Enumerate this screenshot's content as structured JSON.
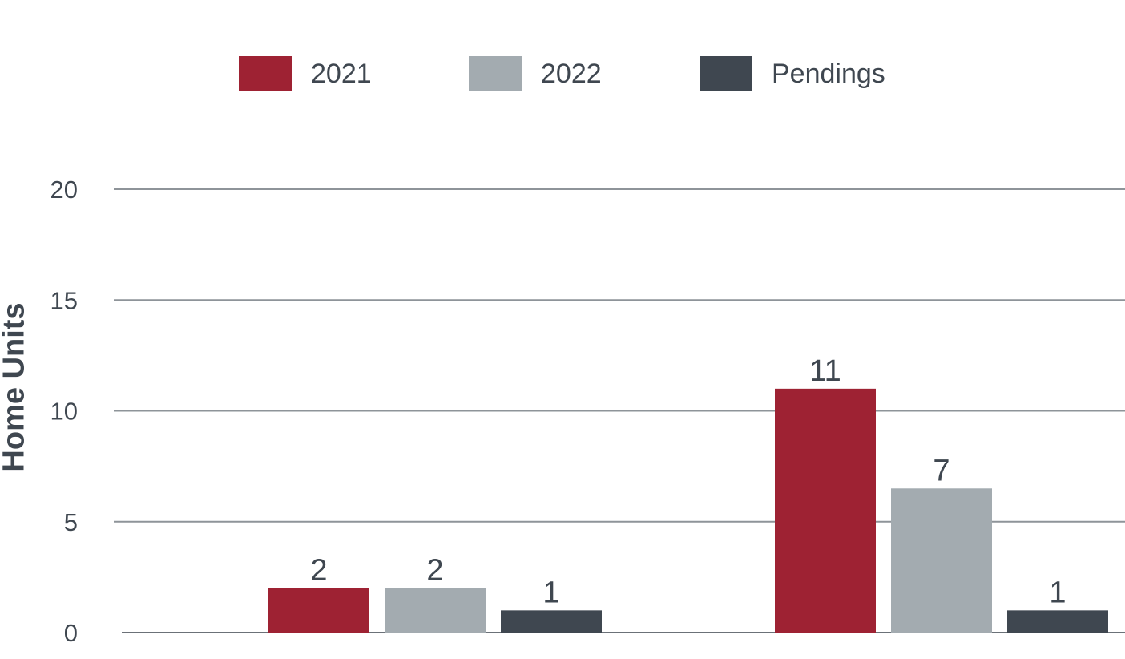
{
  "chart_data": {
    "type": "bar",
    "categories": [
      "",
      ""
    ],
    "series": [
      {
        "name": "2021",
        "color": "#9e2233",
        "values": [
          2,
          11
        ],
        "labels": [
          "2",
          "11"
        ]
      },
      {
        "name": "2022",
        "color": "#a3abb0",
        "values": [
          2,
          6.5
        ],
        "labels": [
          "2",
          "7"
        ]
      },
      {
        "name": "Pendings",
        "color": "#3f4750",
        "values": [
          1,
          1
        ],
        "labels": [
          "1",
          "1"
        ]
      }
    ],
    "ylabel": "Home Units",
    "xlabel": "",
    "ylim": [
      0,
      20
    ],
    "yticks": [
      0,
      5,
      10,
      15,
      20
    ],
    "ytick_labels": [
      "0",
      "5",
      "10",
      "15",
      "20"
    ],
    "grid": true,
    "legend_position": "top-center"
  }
}
